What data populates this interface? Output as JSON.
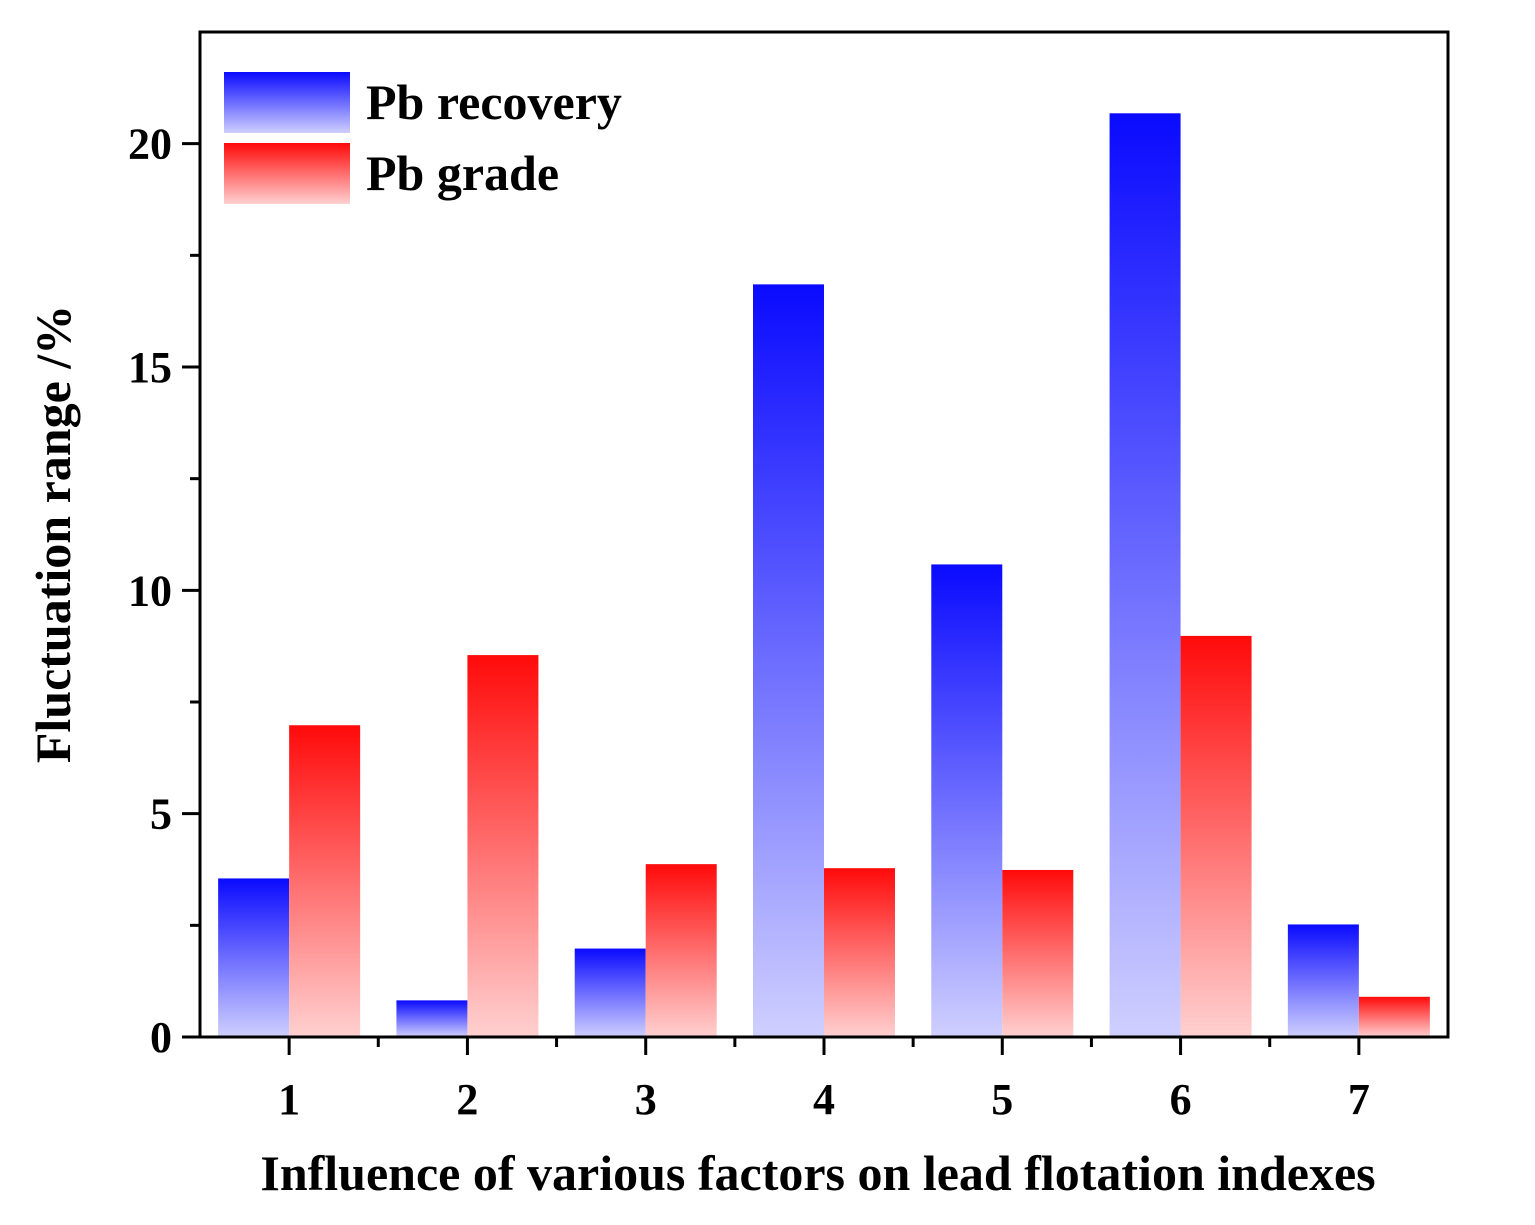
{
  "chart_data": {
    "type": "bar",
    "title": "",
    "xlabel": "Influence of various factors on lead flotation indexes",
    "ylabel": "Fluctuation range /%",
    "categories": [
      "1",
      "2",
      "3",
      "4",
      "5",
      "6",
      "7"
    ],
    "series": [
      {
        "name": "Pb recovery",
        "color": "#0a0aff",
        "color_light": "#cfcfff",
        "values": [
          3.55,
          0.82,
          1.98,
          16.85,
          10.58,
          20.68,
          2.52
        ]
      },
      {
        "name": "Pb grade",
        "color": "#ff0a0a",
        "color_light": "#ffd0d0",
        "values": [
          6.98,
          8.55,
          3.87,
          3.78,
          3.74,
          8.98,
          0.9
        ]
      }
    ],
    "ylim": [
      0,
      22.5
    ],
    "yticks": [
      0,
      5,
      10,
      15,
      20
    ],
    "grid": false,
    "legend_position": "top-left"
  }
}
